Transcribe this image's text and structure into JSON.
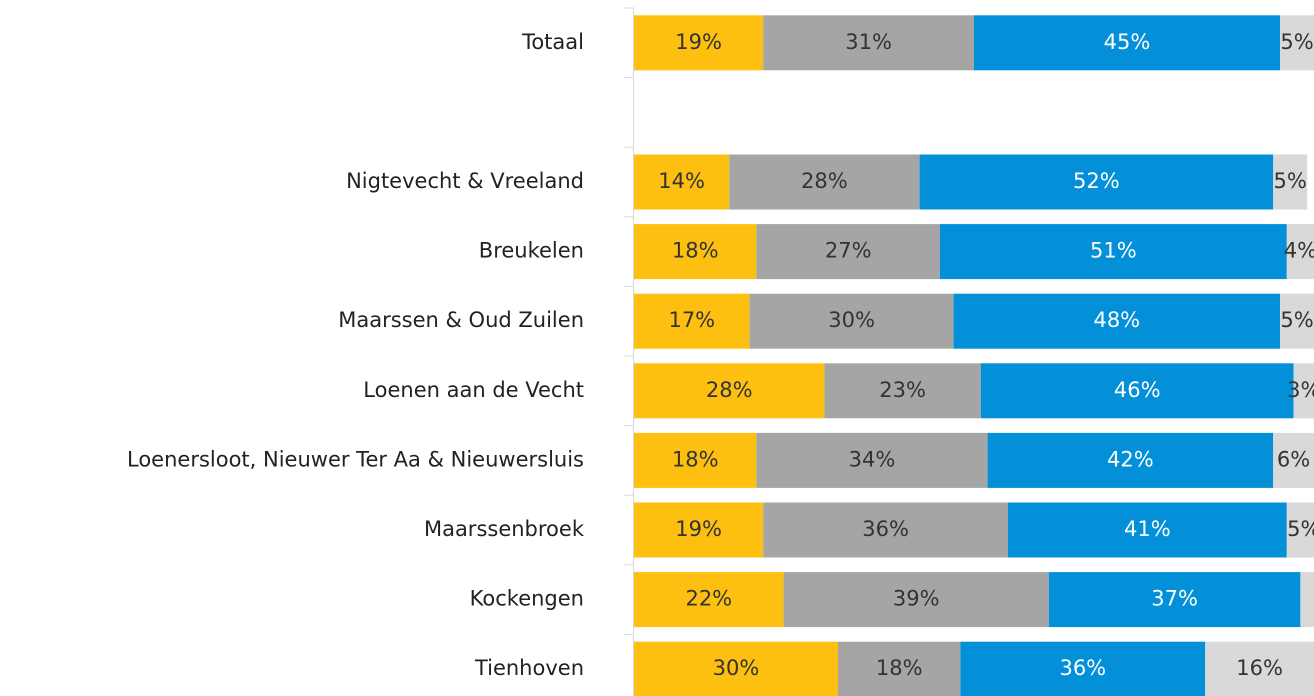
{
  "chart_data": {
    "type": "stacked_barh",
    "categories": [
      "Totaal",
      null,
      "Nigtevecht & Vreeland",
      "Breukelen",
      "Maarssen & Oud Zuilen",
      "Loenen aan de Vecht",
      "Loenersloot, Nieuwer Ter Aa & Nieuwersluis",
      "Maarssenbroek",
      "Kockengen",
      "Tienhoven"
    ],
    "xlim": [
      0,
      100
    ],
    "series": [
      {
        "color": "#FDC010",
        "label_color": "#333333",
        "values": [
          19,
          null,
          14,
          18,
          17,
          28,
          18,
          19,
          22,
          30
        ],
        "value_labels": [
          "19%",
          null,
          "14%",
          "18%",
          "17%",
          "28%",
          "18%",
          "19%",
          "22%",
          "30%"
        ]
      },
      {
        "color": "#A5A5A5",
        "label_color": "#333333",
        "values": [
          31,
          null,
          28,
          27,
          30,
          23,
          34,
          36,
          39,
          18
        ],
        "value_labels": [
          "31%",
          null,
          "28%",
          "27%",
          "30%",
          "23%",
          "34%",
          "36%",
          "39%",
          "18%"
        ]
      },
      {
        "color": "#0390D8",
        "label_color": "#ffffff",
        "values": [
          45,
          null,
          52,
          51,
          48,
          46,
          42,
          41,
          37,
          36
        ],
        "value_labels": [
          "45%",
          null,
          "52%",
          "51%",
          "48%",
          "46%",
          "42%",
          "41%",
          "37%",
          "36%"
        ]
      },
      {
        "color": "#D9D9D9",
        "label_color": "#333333",
        "values": [
          5,
          null,
          5,
          4,
          5,
          3,
          6,
          5,
          2,
          16
        ],
        "value_labels": [
          "5%",
          null,
          "5%",
          "4%",
          "5%",
          "3%",
          "6%",
          "5%",
          null,
          "16%"
        ]
      }
    ]
  }
}
